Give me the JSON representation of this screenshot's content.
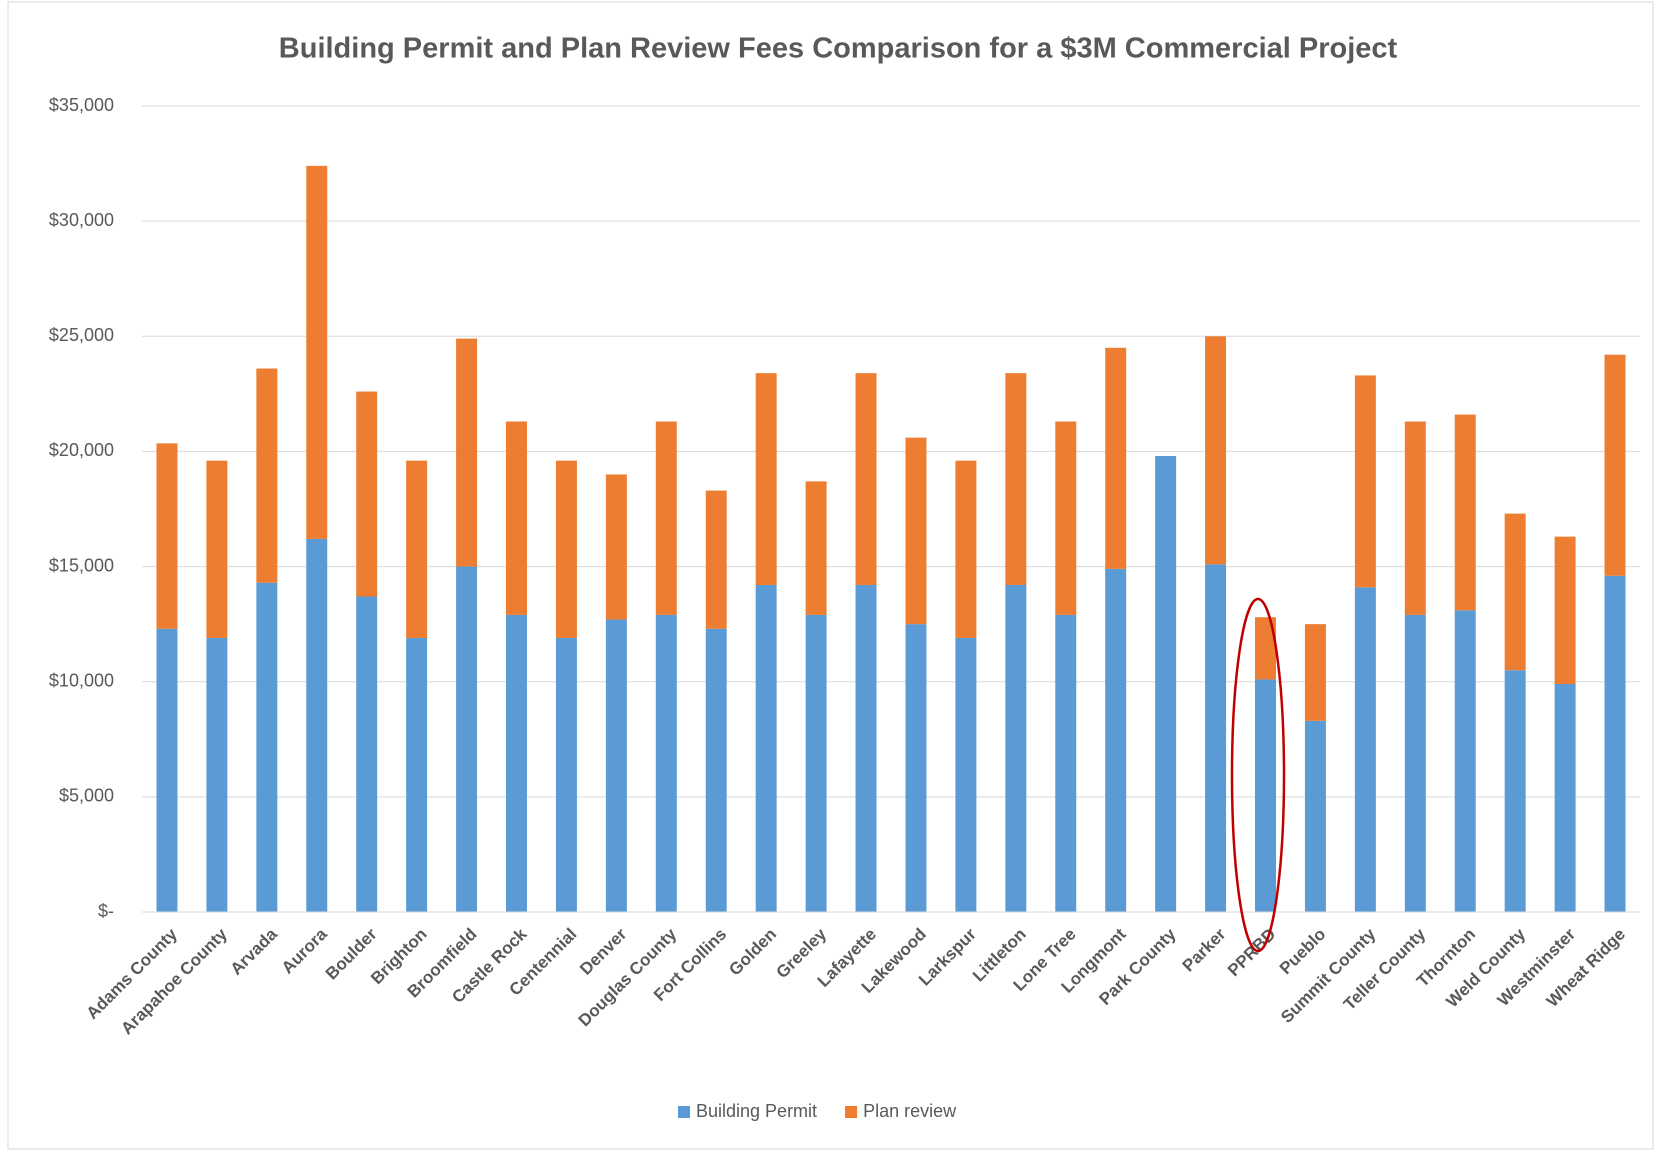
{
  "chart_data": {
    "type": "stacked_bar",
    "title": "Building Permit and Plan Review Fees Comparison for a $3M Commercial Project",
    "categories": [
      "Adams County",
      "Arapahoe County",
      "Arvada",
      "Aurora",
      "Boulder",
      "Brighton",
      "Broomfield",
      "Castle Rock",
      "Centennial",
      "Denver",
      "Douglas County",
      "Fort Collins",
      "Golden",
      "Greeley",
      "Lafayette",
      "Lakewood",
      "Larkspur",
      "Littleton",
      "Lone Tree",
      "Longmont",
      "Park County",
      "Parker",
      "PPRBD",
      "Pueblo",
      "Summit County",
      "Teller County",
      "Thornton",
      "Weld County",
      "Westminster",
      "Wheat Ridge"
    ],
    "series": [
      {
        "name": "Building Permit",
        "color": "#5b9bd5",
        "values": [
          12300,
          11900,
          14300,
          16200,
          13700,
          11900,
          15000,
          12900,
          11900,
          12700,
          12900,
          12300,
          14200,
          12900,
          14200,
          12500,
          11900,
          14200,
          12900,
          14900,
          19800,
          15100,
          10100,
          8300,
          14100,
          12900,
          13100,
          10500,
          9900,
          14600
        ]
      },
      {
        "name": "Plan review",
        "color": "#ed7d31",
        "values": [
          8050,
          7700,
          9300,
          16200,
          8900,
          7700,
          9900,
          8400,
          7700,
          6300,
          8400,
          6000,
          9200,
          5800,
          9200,
          8100,
          7700,
          9200,
          8400,
          9600,
          0,
          9900,
          2700,
          4200,
          9200,
          8400,
          8500,
          6800,
          6400,
          9600
        ]
      }
    ],
    "ylim": [
      0,
      35000
    ],
    "yticks": [
      {
        "value": 0,
        "label": "$-"
      },
      {
        "value": 5000,
        "label": "$5,000"
      },
      {
        "value": 10000,
        "label": "$10,000"
      },
      {
        "value": 15000,
        "label": "$15,000"
      },
      {
        "value": 20000,
        "label": "$20,000"
      },
      {
        "value": 25000,
        "label": "$25,000"
      },
      {
        "value": 30000,
        "label": "$30,000"
      },
      {
        "value": 35000,
        "label": "$35,000"
      }
    ],
    "grid": true,
    "legend": "bottom"
  }
}
